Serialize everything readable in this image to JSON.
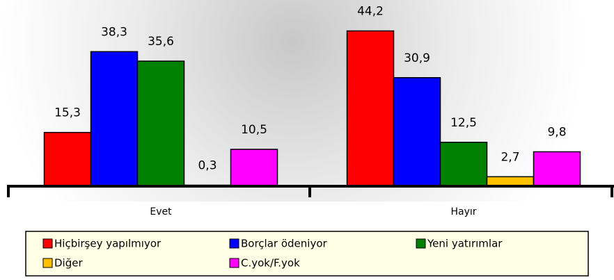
{
  "chart_data": {
    "type": "bar",
    "categories": [
      "Evet",
      "Hayır"
    ],
    "series": [
      {
        "name": "Hiçbirşey yapılmıyor",
        "color": "#ff0000",
        "values": [
          15.3,
          44.2
        ],
        "value_labels": [
          "15,3",
          "44,2"
        ]
      },
      {
        "name": "Borçlar ödeniyor",
        "color": "#0000ff",
        "values": [
          38.3,
          30.9
        ],
        "value_labels": [
          "38,3",
          "30,9"
        ]
      },
      {
        "name": "Yeni yatırımlar",
        "color": "#008000",
        "values": [
          35.6,
          12.5
        ],
        "value_labels": [
          "35,6",
          "12,5"
        ]
      },
      {
        "name": "Diğer",
        "color": "#ffc000",
        "values": [
          0.3,
          2.7
        ],
        "value_labels": [
          "0,3",
          "2,7"
        ]
      },
      {
        "name": "C.yok/F.yok",
        "color": "#ff00ff",
        "values": [
          10.5,
          9.8
        ],
        "value_labels": [
          "10,5",
          "9,8"
        ]
      }
    ],
    "ylim": [
      0,
      53
    ],
    "legend": "bottom"
  }
}
